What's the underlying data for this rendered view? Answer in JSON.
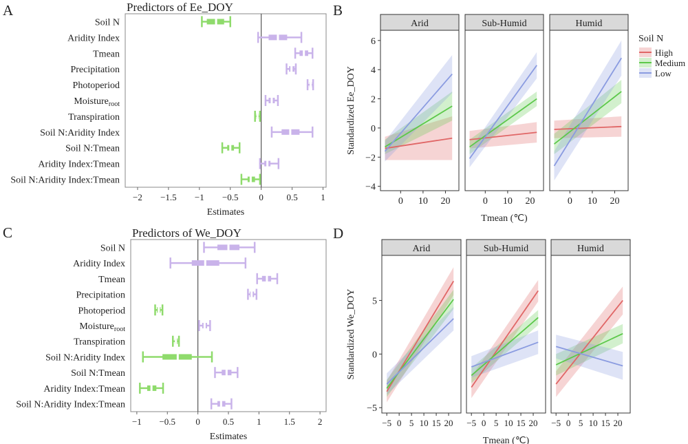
{
  "colors": {
    "green": "#8fdb6c",
    "purple": "#c9b3ea",
    "high": "#e06666",
    "medium": "#5cc84a",
    "low": "#8a9be0",
    "strip_bg": "#d9d9d9",
    "zero_line": "#555555"
  },
  "chart_data": [
    {
      "id": "A",
      "panel_label": "A",
      "type": "forest",
      "title": "Predictors of Ee_DOY",
      "xlabel": "Estimates",
      "xlim": [
        -2.2,
        1.05
      ],
      "xticks": [
        -2,
        -1.5,
        -1,
        -0.5,
        0,
        0.5,
        1
      ],
      "xtick_labels": [
        "−2",
        "−1.5",
        "−1",
        "−0.5",
        "0",
        "0.5",
        "1"
      ],
      "rows": [
        {
          "label": "Soil N",
          "est": -0.73,
          "ci68": [
            -0.88,
            -0.6
          ],
          "ci95": [
            -0.96,
            -0.5
          ],
          "color": "green"
        },
        {
          "label": "Aridity Index",
          "est": 0.27,
          "ci68": [
            0.12,
            0.42
          ],
          "ci95": [
            -0.05,
            0.65
          ],
          "color": "purple"
        },
        {
          "label": "Tmean",
          "est": 0.69,
          "ci68": [
            0.62,
            0.76
          ],
          "ci95": [
            0.55,
            0.83
          ],
          "color": "purple"
        },
        {
          "label": "Precipitation",
          "est": 0.49,
          "ci68": [
            0.45,
            0.54
          ],
          "ci95": [
            0.41,
            0.56
          ],
          "color": "purple"
        },
        {
          "label": "Photoperiod",
          "est": 0.8,
          "ci68": [
            0.78,
            0.82
          ],
          "ci95": [
            0.75,
            0.84
          ],
          "color": "purple"
        },
        {
          "label": "Moisture",
          "sub": "root",
          "est": 0.17,
          "ci68": [
            0.12,
            0.22
          ],
          "ci95": [
            0.07,
            0.27
          ],
          "color": "purple"
        },
        {
          "label": "Transpiration",
          "est": -0.06,
          "ci68": [
            -0.08,
            -0.04
          ],
          "ci95": [
            -0.1,
            -0.02
          ],
          "color": "green"
        },
        {
          "label": "Soil N:Aridity Index",
          "est": 0.47,
          "ci68": [
            0.33,
            0.62
          ],
          "ci95": [
            0.17,
            0.83
          ],
          "color": "purple"
        },
        {
          "label": "Soil N:Tmean",
          "est": -0.5,
          "ci68": [
            -0.55,
            -0.44
          ],
          "ci95": [
            -0.63,
            -0.35
          ],
          "color": "green"
        },
        {
          "label": "Aridity Index:Tmean",
          "est": 0.1,
          "ci68": [
            0.05,
            0.15
          ],
          "ci95": [
            -0.02,
            0.28
          ],
          "color": "purple"
        },
        {
          "label": "Soil N:Aridity Index:Tmean",
          "est": -0.17,
          "ci68": [
            -0.22,
            -0.1
          ],
          "ci95": [
            -0.32,
            -0.02
          ],
          "color": "green"
        }
      ]
    },
    {
      "id": "B",
      "panel_label": "B",
      "type": "line",
      "ylabel": "Standardized Ee_DOY",
      "xlabel": "Tmean (℃)",
      "ylim": [
        -4.3,
        6.7
      ],
      "yticks": [
        -4,
        -2,
        0,
        2,
        4,
        6
      ],
      "ytick_labels": [
        "−4",
        "−2",
        "0",
        "2",
        "4",
        "6"
      ],
      "xlim": [
        -9,
        26
      ],
      "xticks": [
        0,
        10,
        20
      ],
      "xtick_labels": [
        "0",
        "10",
        "20"
      ],
      "legend": {
        "title": "Soil N",
        "entries": [
          "High",
          "Medium",
          "Low"
        ],
        "position": "right"
      },
      "facets": [
        {
          "name": "Arid",
          "series": [
            {
              "name": "High",
              "color": "high",
              "x": [
                -7,
                23
              ],
              "y": [
                -1.4,
                -0.7
              ],
              "band_x0": [
                -2.2,
                -0.6
              ],
              "band_x1": [
                -2.2,
                0.8
              ]
            },
            {
              "name": "Medium",
              "color": "medium",
              "x": [
                -7,
                23
              ],
              "y": [
                -1.3,
                1.5
              ],
              "band_x0": [
                -1.8,
                -0.8
              ],
              "band_x1": [
                0.5,
                2.5
              ]
            },
            {
              "name": "Low",
              "color": "low",
              "x": [
                -7,
                23
              ],
              "y": [
                -1.6,
                3.7
              ],
              "band_x0": [
                -2.3,
                -0.9
              ],
              "band_x1": [
                2.4,
                5.0
              ]
            }
          ]
        },
        {
          "name": "Sub-Humid",
          "series": [
            {
              "name": "High",
              "color": "high",
              "x": [
                -7,
                23
              ],
              "y": [
                -0.8,
                -0.3
              ],
              "band_x0": [
                -1.4,
                -0.2
              ],
              "band_x1": [
                -1.0,
                0.4
              ]
            },
            {
              "name": "Medium",
              "color": "medium",
              "x": [
                -7,
                23
              ],
              "y": [
                -1.3,
                2.0
              ],
              "band_x0": [
                -1.8,
                -0.8
              ],
              "band_x1": [
                1.5,
                2.5
              ]
            },
            {
              "name": "Low",
              "color": "low",
              "x": [
                -7,
                23
              ],
              "y": [
                -2.1,
                4.3
              ],
              "band_x0": [
                -2.7,
                -1.5
              ],
              "band_x1": [
                3.4,
                5.2
              ]
            }
          ]
        },
        {
          "name": "Humid",
          "series": [
            {
              "name": "High",
              "color": "high",
              "x": [
                -7,
                23
              ],
              "y": [
                -0.1,
                0.1
              ],
              "band_x0": [
                -0.7,
                0.5
              ],
              "band_x1": [
                -0.6,
                0.8
              ]
            },
            {
              "name": "Medium",
              "color": "medium",
              "x": [
                -7,
                23
              ],
              "y": [
                -1.1,
                2.5
              ],
              "band_x0": [
                -1.8,
                -0.4
              ],
              "band_x1": [
                1.7,
                3.3
              ]
            },
            {
              "name": "Low",
              "color": "low",
              "x": [
                -7,
                23
              ],
              "y": [
                -2.6,
                4.8
              ],
              "band_x0": [
                -3.6,
                -1.6
              ],
              "band_x1": [
                3.6,
                6.0
              ]
            }
          ]
        }
      ]
    },
    {
      "id": "C",
      "panel_label": "C",
      "type": "forest",
      "title": "Predictors of We_DOY",
      "xlabel": "Estimates",
      "xlim": [
        -1.1,
        2.1
      ],
      "xticks": [
        -1,
        -0.5,
        0,
        0.5,
        1,
        1.5,
        2
      ],
      "xtick_labels": [
        "−1",
        "−0.5",
        "0",
        "0.5",
        "1",
        "1.5",
        "2"
      ],
      "rows": [
        {
          "label": "Soil N",
          "est": 0.5,
          "ci68": [
            0.32,
            0.68
          ],
          "ci95": [
            0.1,
            0.93
          ],
          "color": "purple"
        },
        {
          "label": "Aridity Index",
          "est": 0.12,
          "ci68": [
            -0.1,
            0.35
          ],
          "ci95": [
            -0.45,
            0.78
          ],
          "color": "purple"
        },
        {
          "label": "Tmean",
          "est": 1.13,
          "ci68": [
            1.05,
            1.2
          ],
          "ci95": [
            0.97,
            1.3
          ],
          "color": "purple"
        },
        {
          "label": "Precipitation",
          "est": 0.88,
          "ci68": [
            0.85,
            0.92
          ],
          "ci95": [
            0.82,
            0.96
          ],
          "color": "purple"
        },
        {
          "label": "Photoperiod",
          "est": -0.64,
          "ci68": [
            -0.67,
            -0.61
          ],
          "ci95": [
            -0.7,
            -0.58
          ],
          "color": "green"
        },
        {
          "label": "Moisture",
          "sub": "root",
          "est": 0.11,
          "ci68": [
            0.07,
            0.15
          ],
          "ci95": [
            0.02,
            0.2
          ],
          "color": "purple"
        },
        {
          "label": "Transpiration",
          "est": -0.36,
          "ci68": [
            -0.38,
            -0.33
          ],
          "ci95": [
            -0.41,
            -0.31
          ],
          "color": "green"
        },
        {
          "label": "Soil N:Aridity Index",
          "est": -0.33,
          "ci68": [
            -0.58,
            -0.1
          ],
          "ci95": [
            -0.9,
            0.23
          ],
          "color": "green"
        },
        {
          "label": "Soil N:Tmean",
          "est": 0.47,
          "ci68": [
            0.39,
            0.55
          ],
          "ci95": [
            0.28,
            0.65
          ],
          "color": "purple"
        },
        {
          "label": "Aridity Index:Tmean",
          "est": -0.76,
          "ci68": [
            -0.83,
            -0.68
          ],
          "ci95": [
            -0.95,
            -0.57
          ],
          "color": "green"
        },
        {
          "label": "Soil N:Aridity Index:Tmean",
          "est": 0.38,
          "ci68": [
            0.32,
            0.45
          ],
          "ci95": [
            0.22,
            0.55
          ],
          "color": "purple"
        }
      ]
    },
    {
      "id": "D",
      "panel_label": "D",
      "type": "line",
      "ylabel": "Standardized We_DOY",
      "xlabel": "Tmean (℃)",
      "ylim": [
        -5.5,
        9.2
      ],
      "yticks": [
        -5,
        0,
        5
      ],
      "ytick_labels": [
        "−5",
        "0",
        "5"
      ],
      "xlim": [
        -7,
        25
      ],
      "xticks": [
        -5,
        0,
        5,
        10,
        15,
        20
      ],
      "xtick_labels": [
        "−5",
        "0",
        "5",
        "10",
        "15",
        "20"
      ],
      "facets": [
        {
          "name": "Arid",
          "series": [
            {
              "name": "High",
              "color": "high",
              "x": [
                -5,
                22
              ],
              "y": [
                -3.5,
                6.8
              ],
              "band_x0": [
                -4.5,
                -2.5
              ],
              "band_x1": [
                5.5,
                8.1
              ]
            },
            {
              "name": "Medium",
              "color": "medium",
              "x": [
                -5,
                22
              ],
              "y": [
                -3.2,
                5.1
              ],
              "band_x0": [
                -4.0,
                -2.4
              ],
              "band_x1": [
                4.2,
                6.0
              ]
            },
            {
              "name": "Low",
              "color": "low",
              "x": [
                -5,
                22
              ],
              "y": [
                -2.8,
                3.3
              ],
              "band_x0": [
                -3.8,
                -1.8
              ],
              "band_x1": [
                2.2,
                4.4
              ]
            }
          ]
        },
        {
          "name": "Sub-Humid",
          "series": [
            {
              "name": "High",
              "color": "high",
              "x": [
                -5,
                22
              ],
              "y": [
                -3.1,
                5.9
              ],
              "band_x0": [
                -4.1,
                -2.1
              ],
              "band_x1": [
                4.9,
                6.9
              ]
            },
            {
              "name": "Medium",
              "color": "medium",
              "x": [
                -5,
                22
              ],
              "y": [
                -2.0,
                3.4
              ],
              "band_x0": [
                -2.7,
                -1.3
              ],
              "band_x1": [
                2.7,
                4.1
              ]
            },
            {
              "name": "Low",
              "color": "low",
              "x": [
                -5,
                22
              ],
              "y": [
                -1.2,
                1.1
              ],
              "band_x0": [
                -2.2,
                -0.2
              ],
              "band_x1": [
                0.0,
                2.2
              ]
            }
          ]
        },
        {
          "name": "Humid",
          "series": [
            {
              "name": "High",
              "color": "high",
              "x": [
                -5,
                22
              ],
              "y": [
                -2.8,
                5.0
              ],
              "band_x0": [
                -4.0,
                -1.6
              ],
              "band_x1": [
                3.7,
                6.3
              ]
            },
            {
              "name": "Medium",
              "color": "medium",
              "x": [
                -5,
                22
              ],
              "y": [
                -1.0,
                1.9
              ],
              "band_x0": [
                -2.0,
                0.0
              ],
              "band_x1": [
                1.0,
                2.8
              ]
            },
            {
              "name": "Low",
              "color": "low",
              "x": [
                -5,
                22
              ],
              "y": [
                0.7,
                -1.1
              ],
              "band_x0": [
                -0.4,
                1.8
              ],
              "band_x1": [
                -2.4,
                0.2
              ]
            }
          ]
        }
      ]
    }
  ]
}
